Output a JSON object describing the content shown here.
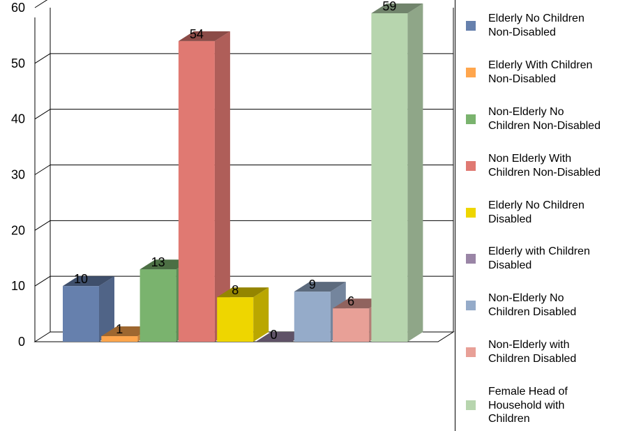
{
  "chart_data": {
    "type": "bar",
    "title": "",
    "xlabel": "",
    "ylabel": "",
    "ylim": [
      0,
      60
    ],
    "yticks": [
      0,
      10,
      20,
      30,
      40,
      50,
      60
    ],
    "grid": true,
    "three_d": true,
    "legend_position": "right",
    "series": [
      {
        "name": "Elderly No Children Non-Disabled",
        "value": 10,
        "color": "#6680AD"
      },
      {
        "name": "Elderly With Children Non-Disabled",
        "value": 1,
        "color": "#FFA64D"
      },
      {
        "name": "Non-Elderly No Children Non-Disabled",
        "value": 13,
        "color": "#7AB36E"
      },
      {
        "name": "Non Elderly With Children Non-Disabled",
        "value": 54,
        "color": "#E07972"
      },
      {
        "name": "Elderly No Children Disabled",
        "value": 8,
        "color": "#EED600"
      },
      {
        "name": "Elderly with Children Disabled",
        "value": 0,
        "color": "#9A85A6"
      },
      {
        "name": "Non-Elderly No Children Disabled",
        "value": 9,
        "color": "#95ABC9"
      },
      {
        "name": "Non-Elderly with Children Disabled",
        "value": 6,
        "color": "#E8A097"
      },
      {
        "name": "Female Head of Household with Children",
        "value": 59,
        "color": "#B7D5AE"
      }
    ]
  },
  "legend": {
    "items": [
      {
        "lines": [
          "Elderly No Children",
          "Non-Disabled"
        ]
      },
      {
        "lines": [
          "Elderly With Children",
          "Non-Disabled"
        ]
      },
      {
        "lines": [
          "Non-Elderly No",
          "Children Non-Disabled"
        ]
      },
      {
        "lines": [
          "Non Elderly With",
          "Children Non-Disabled"
        ]
      },
      {
        "lines": [
          "Elderly No Children",
          "Disabled"
        ]
      },
      {
        "lines": [
          "Elderly with Children",
          "Disabled"
        ]
      },
      {
        "lines": [
          "Non-Elderly No",
          "Children Disabled"
        ]
      },
      {
        "lines": [
          "Non-Elderly with",
          "Children Disabled"
        ]
      },
      {
        "lines": [
          "Female Head of",
          "Household with",
          "Children"
        ]
      }
    ]
  }
}
